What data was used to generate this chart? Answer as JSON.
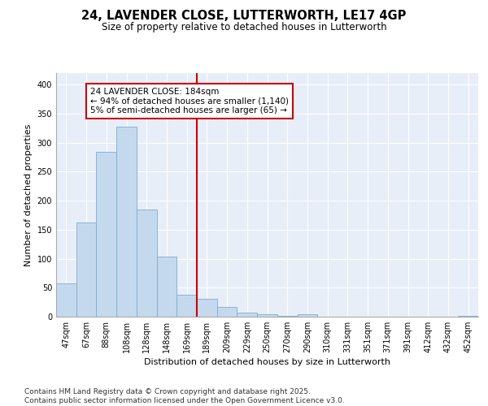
{
  "title_line1": "24, LAVENDER CLOSE, LUTTERWORTH, LE17 4GP",
  "title_line2": "Size of property relative to detached houses in Lutterworth",
  "xlabel": "Distribution of detached houses by size in Lutterworth",
  "ylabel": "Number of detached properties",
  "categories": [
    "47sqm",
    "67sqm",
    "88sqm",
    "108sqm",
    "128sqm",
    "148sqm",
    "169sqm",
    "189sqm",
    "209sqm",
    "229sqm",
    "250sqm",
    "270sqm",
    "290sqm",
    "310sqm",
    "331sqm",
    "351sqm",
    "371sqm",
    "391sqm",
    "412sqm",
    "432sqm",
    "452sqm"
  ],
  "values": [
    57,
    163,
    284,
    328,
    185,
    103,
    38,
    31,
    17,
    7,
    4,
    1,
    4,
    0,
    0,
    0,
    0,
    0,
    0,
    0,
    2
  ],
  "bar_color": "#c5d9ee",
  "bar_edge_color": "#7aadcf",
  "vline_index": 7,
  "vline_color": "#cc0000",
  "annotation_text": "24 LAVENDER CLOSE: 184sqm\n← 94% of detached houses are smaller (1,140)\n5% of semi-detached houses are larger (65) →",
  "annotation_box_color": "#cc0000",
  "background_color": "#e8eef8",
  "grid_color": "#ffffff",
  "ylim": [
    0,
    420
  ],
  "yticks": [
    0,
    50,
    100,
    150,
    200,
    250,
    300,
    350,
    400
  ],
  "footer_text": "Contains HM Land Registry data © Crown copyright and database right 2025.\nContains public sector information licensed under the Open Government Licence v3.0.",
  "title_fontsize": 10.5,
  "subtitle_fontsize": 8.5,
  "axis_label_fontsize": 8,
  "tick_fontsize": 7,
  "annotation_fontsize": 7.5,
  "footer_fontsize": 6.5
}
